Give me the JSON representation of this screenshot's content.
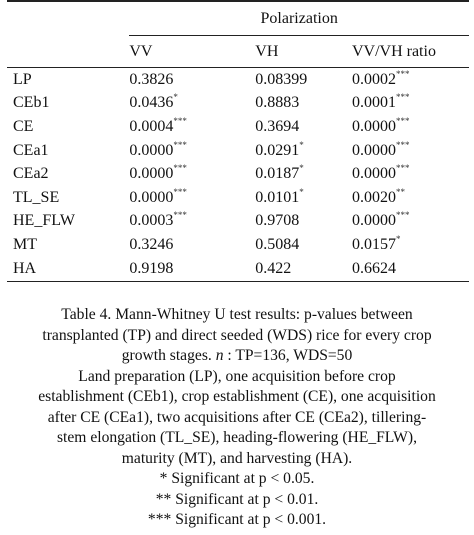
{
  "table": {
    "group_header": "Polarization",
    "columns": [
      "VV",
      "VH",
      "VV/VH ratio"
    ],
    "rows": [
      {
        "label": "LP",
        "vv": "0.3826",
        "vv_sig": "",
        "vh": "0.08399",
        "vh_sig": "",
        "ratio": "0.0002",
        "ratio_sig": "***"
      },
      {
        "label": "CEb1",
        "vv": "0.0436",
        "vv_sig": "*",
        "vh": "0.8883",
        "vh_sig": "",
        "ratio": "0.0001",
        "ratio_sig": "***"
      },
      {
        "label": "CE",
        "vv": "0.0004",
        "vv_sig": "***",
        "vh": "0.3694",
        "vh_sig": "",
        "ratio": "0.0000",
        "ratio_sig": "***"
      },
      {
        "label": "CEa1",
        "vv": "0.0000",
        "vv_sig": "***",
        "vh": "0.0291",
        "vh_sig": "*",
        "ratio": "0.0000",
        "ratio_sig": "***"
      },
      {
        "label": "CEa2",
        "vv": "0.0000",
        "vv_sig": "***",
        "vh": "0.0187",
        "vh_sig": "*",
        "ratio": "0.0000",
        "ratio_sig": "***"
      },
      {
        "label": "TL_SE",
        "vv": "0.0000",
        "vv_sig": "***",
        "vh": "0.0101",
        "vh_sig": "*",
        "ratio": "0.0020",
        "ratio_sig": "**"
      },
      {
        "label": "HE_FLW",
        "vv": "0.0003",
        "vv_sig": "***",
        "vh": "0.9708",
        "vh_sig": "",
        "ratio": "0.0000",
        "ratio_sig": "***"
      },
      {
        "label": "MT",
        "vv": "0.3246",
        "vv_sig": "",
        "vh": "0.5084",
        "vh_sig": "",
        "ratio": "0.0157",
        "ratio_sig": "*"
      },
      {
        "label": "HA",
        "vv": "0.9198",
        "vv_sig": "",
        "vh": "0.422",
        "vh_sig": "",
        "ratio": "0.6624",
        "ratio_sig": ""
      }
    ]
  },
  "caption": {
    "line1": "Table 4. Mann-Whitney U test results: p-values between",
    "line2": "transplanted (TP) and direct seeded (WDS) rice for every crop",
    "line3_pre": "growth stages. ",
    "line3_n": "n",
    "line3_post": " : TP=136, WDS=50",
    "line4": "Land preparation (LP), one acquisition before crop",
    "line5": "establishment (CEb1), crop establishment (CE), one acquisition",
    "line6": "after CE (CEa1), two acquisitions after CE (CEa2), tillering-",
    "line7": "stem elongation (TL_SE), heading-flowering (HE_FLW),",
    "line8": "maturity (MT), and harvesting (HA).",
    "line9": "* Significant at p < 0.05.",
    "line10": "** Significant at p < 0.01.",
    "line11": "*** Significant at p < 0.001."
  }
}
